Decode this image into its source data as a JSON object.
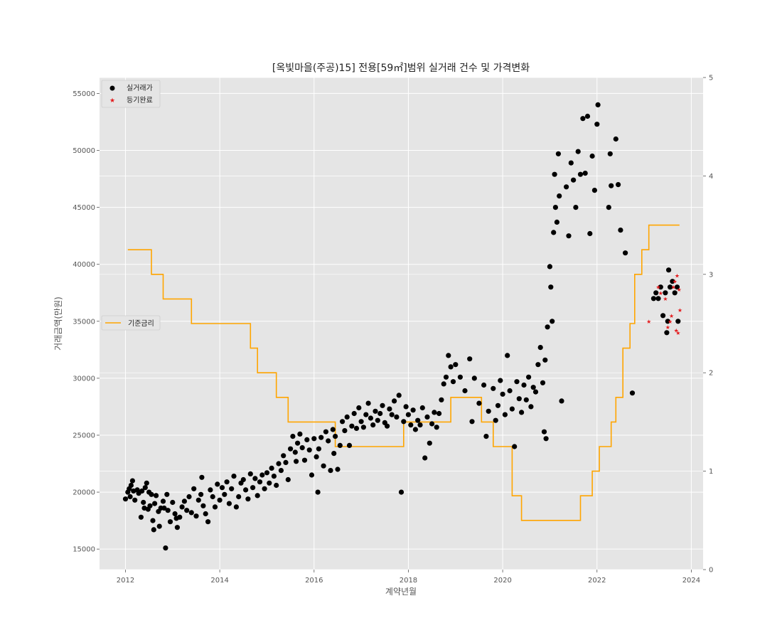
{
  "chart_data": {
    "type": "scatter",
    "title": "[옥빛마을(주공)15] 전용[59㎡]범위 실거래 건수 및 가격변화",
    "xlabel": "계약년월",
    "ylabel": "거래금액(만원)",
    "x_range": [
      2011.45,
      2024.25
    ],
    "y_range": [
      13200,
      56400
    ],
    "y2_range": [
      0,
      5
    ],
    "x_ticks": [
      "2012",
      "2014",
      "2016",
      "2018",
      "2020",
      "2022",
      "2024"
    ],
    "y_ticks": [
      "15000",
      "20000",
      "25000",
      "30000",
      "35000",
      "40000",
      "45000",
      "50000",
      "55000"
    ],
    "y2_ticks": [
      "0",
      "1",
      "2",
      "3",
      "4",
      "5"
    ],
    "grid": true,
    "legend_scatter": {
      "placement": "upper-left",
      "entries": [
        "실거래가",
        "등기완료"
      ]
    },
    "legend_rate": {
      "placement": "center-left",
      "entries": [
        "기준금리"
      ]
    },
    "colors": {
      "trades": "#000000",
      "registered": "#e41a1c",
      "rate": "#ffa500",
      "plot_bg": "#e5e5e5",
      "grid": "#ffffff"
    },
    "series": [
      {
        "name": "실거래가",
        "kind": "scatter",
        "marker": "circle",
        "points": [
          [
            2012.0,
            19400
          ],
          [
            2012.05,
            20000
          ],
          [
            2012.08,
            20300
          ],
          [
            2012.1,
            19600
          ],
          [
            2012.12,
            20600
          ],
          [
            2012.15,
            21000
          ],
          [
            2012.17,
            20100
          ],
          [
            2012.2,
            19300
          ],
          [
            2012.25,
            20200
          ],
          [
            2012.28,
            19900
          ],
          [
            2012.33,
            17800
          ],
          [
            2012.35,
            20100
          ],
          [
            2012.38,
            19100
          ],
          [
            2012.4,
            18600
          ],
          [
            2012.42,
            20400
          ],
          [
            2012.45,
            20800
          ],
          [
            2012.48,
            18500
          ],
          [
            2012.5,
            20000
          ],
          [
            2012.52,
            18800
          ],
          [
            2012.55,
            19800
          ],
          [
            2012.58,
            17500
          ],
          [
            2012.6,
            16700
          ],
          [
            2012.62,
            19000
          ],
          [
            2012.65,
            19700
          ],
          [
            2012.7,
            18300
          ],
          [
            2012.72,
            17000
          ],
          [
            2012.75,
            18600
          ],
          [
            2012.8,
            19200
          ],
          [
            2012.82,
            18600
          ],
          [
            2012.85,
            15100
          ],
          [
            2012.88,
            19800
          ],
          [
            2012.9,
            18400
          ],
          [
            2012.95,
            17400
          ],
          [
            2013.0,
            19100
          ],
          [
            2013.05,
            18100
          ],
          [
            2013.08,
            17700
          ],
          [
            2013.1,
            16900
          ],
          [
            2013.15,
            17800
          ],
          [
            2013.2,
            18700
          ],
          [
            2013.25,
            19200
          ],
          [
            2013.3,
            18400
          ],
          [
            2013.35,
            19600
          ],
          [
            2013.4,
            18200
          ],
          [
            2013.45,
            20300
          ],
          [
            2013.5,
            17900
          ],
          [
            2013.55,
            19300
          ],
          [
            2013.6,
            19800
          ],
          [
            2013.62,
            21300
          ],
          [
            2013.65,
            18800
          ],
          [
            2013.7,
            18100
          ],
          [
            2013.75,
            17400
          ],
          [
            2013.8,
            20200
          ],
          [
            2013.85,
            19600
          ],
          [
            2013.9,
            18700
          ],
          [
            2013.95,
            20700
          ],
          [
            2014.0,
            19300
          ],
          [
            2014.05,
            20400
          ],
          [
            2014.1,
            19800
          ],
          [
            2014.15,
            20900
          ],
          [
            2014.2,
            19000
          ],
          [
            2014.25,
            20300
          ],
          [
            2014.3,
            21400
          ],
          [
            2014.35,
            18700
          ],
          [
            2014.4,
            19600
          ],
          [
            2014.45,
            20800
          ],
          [
            2014.5,
            21100
          ],
          [
            2014.55,
            20200
          ],
          [
            2014.6,
            19400
          ],
          [
            2014.65,
            21600
          ],
          [
            2014.7,
            20400
          ],
          [
            2014.75,
            21200
          ],
          [
            2014.8,
            19700
          ],
          [
            2014.85,
            20900
          ],
          [
            2014.9,
            21500
          ],
          [
            2014.95,
            20300
          ],
          [
            2015.0,
            21700
          ],
          [
            2015.05,
            20800
          ],
          [
            2015.1,
            22100
          ],
          [
            2015.15,
            21400
          ],
          [
            2015.2,
            20600
          ],
          [
            2015.25,
            22500
          ],
          [
            2015.3,
            21900
          ],
          [
            2015.35,
            23200
          ],
          [
            2015.4,
            22600
          ],
          [
            2015.45,
            21100
          ],
          [
            2015.5,
            23800
          ],
          [
            2015.55,
            24900
          ],
          [
            2015.6,
            23500
          ],
          [
            2015.62,
            22700
          ],
          [
            2015.65,
            24300
          ],
          [
            2015.7,
            25100
          ],
          [
            2015.75,
            23900
          ],
          [
            2015.8,
            22800
          ],
          [
            2015.85,
            24600
          ],
          [
            2015.9,
            23700
          ],
          [
            2015.95,
            21500
          ],
          [
            2016.0,
            24700
          ],
          [
            2016.05,
            23100
          ],
          [
            2016.08,
            20000
          ],
          [
            2016.1,
            23800
          ],
          [
            2016.15,
            24800
          ],
          [
            2016.2,
            22300
          ],
          [
            2016.25,
            25300
          ],
          [
            2016.3,
            24500
          ],
          [
            2016.35,
            21900
          ],
          [
            2016.4,
            25500
          ],
          [
            2016.42,
            23400
          ],
          [
            2016.45,
            24900
          ],
          [
            2016.5,
            22000
          ],
          [
            2016.55,
            24100
          ],
          [
            2016.6,
            26200
          ],
          [
            2016.65,
            25400
          ],
          [
            2016.7,
            26600
          ],
          [
            2016.75,
            24100
          ],
          [
            2016.8,
            25800
          ],
          [
            2016.85,
            26900
          ],
          [
            2016.9,
            25600
          ],
          [
            2016.95,
            27400
          ],
          [
            2017.0,
            26200
          ],
          [
            2017.05,
            25700
          ],
          [
            2017.1,
            26800
          ],
          [
            2017.15,
            27800
          ],
          [
            2017.2,
            26500
          ],
          [
            2017.25,
            25900
          ],
          [
            2017.3,
            27100
          ],
          [
            2017.35,
            26300
          ],
          [
            2017.4,
            26900
          ],
          [
            2017.45,
            27600
          ],
          [
            2017.5,
            26100
          ],
          [
            2017.55,
            25800
          ],
          [
            2017.6,
            27300
          ],
          [
            2017.65,
            26800
          ],
          [
            2017.7,
            28000
          ],
          [
            2017.75,
            26600
          ],
          [
            2017.8,
            28500
          ],
          [
            2017.85,
            20000
          ],
          [
            2017.9,
            26200
          ],
          [
            2017.95,
            27500
          ],
          [
            2018.0,
            26800
          ],
          [
            2018.05,
            25900
          ],
          [
            2018.1,
            27200
          ],
          [
            2018.15,
            25500
          ],
          [
            2018.2,
            26300
          ],
          [
            2018.25,
            25900
          ],
          [
            2018.3,
            27400
          ],
          [
            2018.35,
            23000
          ],
          [
            2018.4,
            26600
          ],
          [
            2018.45,
            24300
          ],
          [
            2018.5,
            26000
          ],
          [
            2018.55,
            27000
          ],
          [
            2018.6,
            25700
          ],
          [
            2018.65,
            26900
          ],
          [
            2018.7,
            28100
          ],
          [
            2018.75,
            29500
          ],
          [
            2018.8,
            30100
          ],
          [
            2018.85,
            32000
          ],
          [
            2018.9,
            31000
          ],
          [
            2018.95,
            29700
          ],
          [
            2019.0,
            31200
          ],
          [
            2019.1,
            30100
          ],
          [
            2019.2,
            28900
          ],
          [
            2019.3,
            31700
          ],
          [
            2019.35,
            26200
          ],
          [
            2019.4,
            30000
          ],
          [
            2019.5,
            27800
          ],
          [
            2019.6,
            29400
          ],
          [
            2019.65,
            24900
          ],
          [
            2019.7,
            27100
          ],
          [
            2019.8,
            29100
          ],
          [
            2019.85,
            26300
          ],
          [
            2019.9,
            27600
          ],
          [
            2019.95,
            29800
          ],
          [
            2020.0,
            28600
          ],
          [
            2020.05,
            26800
          ],
          [
            2020.1,
            32000
          ],
          [
            2020.15,
            28900
          ],
          [
            2020.2,
            27300
          ],
          [
            2020.25,
            24000
          ],
          [
            2020.3,
            29700
          ],
          [
            2020.35,
            28200
          ],
          [
            2020.4,
            27000
          ],
          [
            2020.45,
            29400
          ],
          [
            2020.5,
            28100
          ],
          [
            2020.55,
            30100
          ],
          [
            2020.6,
            27500
          ],
          [
            2020.65,
            29200
          ],
          [
            2020.7,
            28800
          ],
          [
            2020.75,
            31200
          ],
          [
            2020.8,
            32700
          ],
          [
            2020.85,
            29600
          ],
          [
            2020.88,
            25300
          ],
          [
            2020.9,
            31600
          ],
          [
            2020.92,
            24700
          ],
          [
            2020.95,
            34500
          ],
          [
            2021.0,
            39800
          ],
          [
            2021.02,
            38000
          ],
          [
            2021.05,
            35000
          ],
          [
            2021.08,
            42800
          ],
          [
            2021.1,
            47900
          ],
          [
            2021.12,
            45000
          ],
          [
            2021.15,
            43700
          ],
          [
            2021.18,
            49700
          ],
          [
            2021.2,
            46000
          ],
          [
            2021.25,
            28000
          ],
          [
            2021.35,
            46800
          ],
          [
            2021.4,
            42500
          ],
          [
            2021.45,
            48900
          ],
          [
            2021.5,
            47400
          ],
          [
            2021.55,
            45000
          ],
          [
            2021.6,
            49900
          ],
          [
            2021.65,
            47900
          ],
          [
            2021.7,
            52800
          ],
          [
            2021.75,
            48000
          ],
          [
            2021.8,
            53000
          ],
          [
            2021.85,
            42700
          ],
          [
            2021.9,
            49500
          ],
          [
            2021.95,
            46500
          ],
          [
            2022.0,
            52300
          ],
          [
            2022.02,
            54000
          ],
          [
            2022.25,
            45000
          ],
          [
            2022.28,
            49700
          ],
          [
            2022.3,
            46900
          ],
          [
            2022.4,
            51000
          ],
          [
            2022.45,
            47000
          ],
          [
            2022.5,
            43000
          ],
          [
            2022.6,
            41000
          ],
          [
            2022.75,
            28700
          ],
          [
            2023.2,
            37000
          ],
          [
            2023.25,
            37500
          ],
          [
            2023.3,
            37000
          ],
          [
            2023.35,
            38000
          ],
          [
            2023.4,
            35500
          ],
          [
            2023.45,
            37500
          ],
          [
            2023.48,
            34000
          ],
          [
            2023.5,
            35000
          ],
          [
            2023.52,
            39500
          ],
          [
            2023.55,
            38000
          ],
          [
            2023.6,
            38500
          ],
          [
            2023.65,
            37500
          ],
          [
            2023.7,
            38000
          ],
          [
            2023.72,
            35000
          ]
        ]
      },
      {
        "name": "등기완료",
        "kind": "scatter",
        "marker": "star",
        "points": [
          [
            2023.1,
            35000
          ],
          [
            2023.3,
            38000
          ],
          [
            2023.35,
            37500
          ],
          [
            2023.45,
            37000
          ],
          [
            2023.5,
            34500
          ],
          [
            2023.55,
            35000
          ],
          [
            2023.58,
            35500
          ],
          [
            2023.62,
            38000
          ],
          [
            2023.65,
            38500
          ],
          [
            2023.68,
            34200
          ],
          [
            2023.7,
            39000
          ],
          [
            2023.72,
            34000
          ],
          [
            2023.74,
            37800
          ],
          [
            2023.76,
            36000
          ]
        ]
      },
      {
        "name": "기준금리",
        "kind": "step",
        "axis": "right",
        "points": [
          [
            2012.05,
            3.25
          ],
          [
            2012.55,
            3.0
          ],
          [
            2012.8,
            2.75
          ],
          [
            2013.4,
            2.5
          ],
          [
            2014.65,
            2.25
          ],
          [
            2014.8,
            2.0
          ],
          [
            2015.2,
            1.75
          ],
          [
            2015.45,
            1.5
          ],
          [
            2016.45,
            1.25
          ],
          [
            2017.9,
            1.5
          ],
          [
            2018.9,
            1.75
          ],
          [
            2019.55,
            1.5
          ],
          [
            2019.8,
            1.25
          ],
          [
            2020.2,
            0.75
          ],
          [
            2020.4,
            0.5
          ],
          [
            2021.65,
            0.75
          ],
          [
            2021.9,
            1.0
          ],
          [
            2022.05,
            1.25
          ],
          [
            2022.3,
            1.5
          ],
          [
            2022.4,
            1.75
          ],
          [
            2022.55,
            2.25
          ],
          [
            2022.7,
            2.5
          ],
          [
            2022.8,
            3.0
          ],
          [
            2022.95,
            3.25
          ],
          [
            2023.1,
            3.5
          ],
          [
            2023.75,
            3.5
          ]
        ]
      }
    ]
  }
}
